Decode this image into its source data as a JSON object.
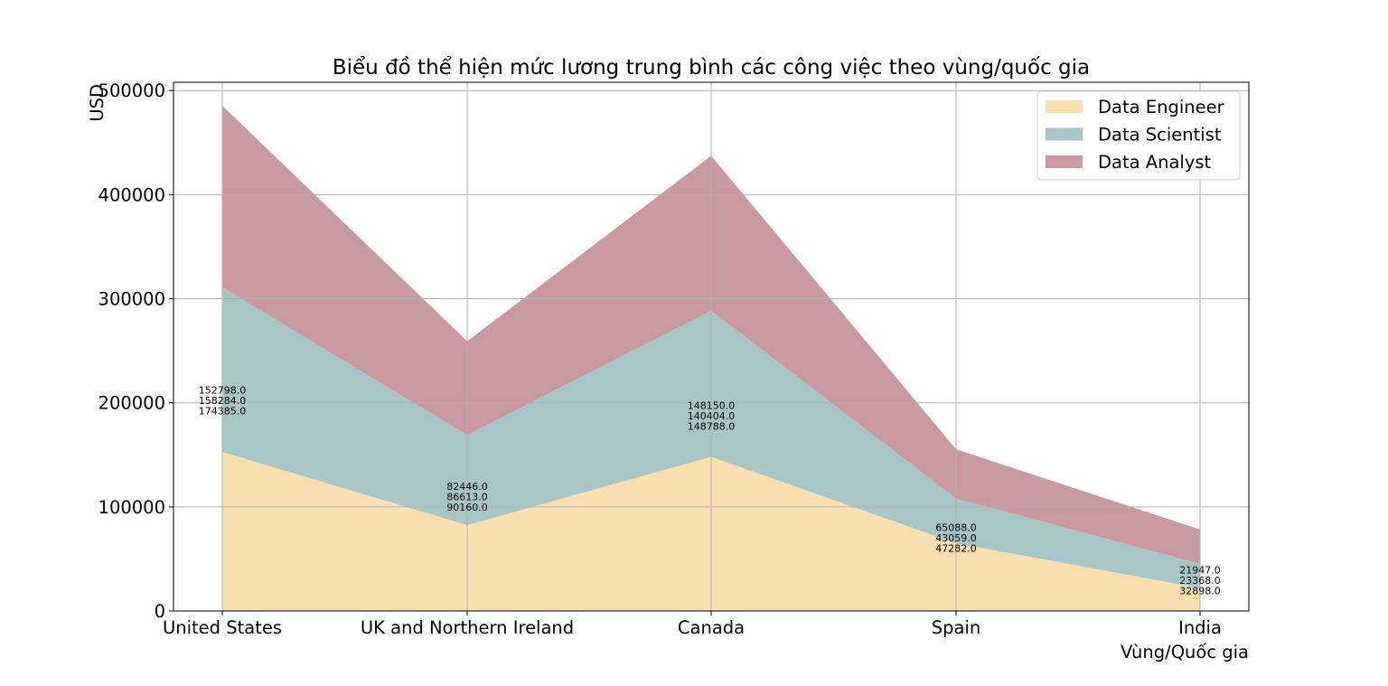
{
  "chart_data": {
    "type": "area",
    "stacked": true,
    "title": "Biểu đồ thể hiện mức lương trung bình các công việc theo vùng/quốc gia",
    "xlabel": "Vùng/Quốc gia",
    "ylabel": "USD",
    "categories": [
      "United States",
      "UK and Northern Ireland",
      "Canada",
      "Spain",
      "India"
    ],
    "series": [
      {
        "name": "Data Engineer",
        "values": [
          152798.0,
          82446.0,
          148150.0,
          65088.0,
          21947.0
        ],
        "color": "#f9dfaf"
      },
      {
        "name": "Data Scientist",
        "values": [
          158284.0,
          86613.0,
          140404.0,
          43059.0,
          23368.0
        ],
        "color": "#a9c6c6"
      },
      {
        "name": "Data Analyst",
        "values": [
          174385.0,
          90160.0,
          148788.0,
          47282.0,
          32898.0
        ],
        "color": "#c8999f"
      }
    ],
    "data_labels": [
      [
        "152798.0",
        "158284.0",
        "174385.0"
      ],
      [
        "82446.0",
        "86613.0",
        "90160.0"
      ],
      [
        "148150.0",
        "140404.0",
        "148788.0"
      ],
      [
        "65088.0",
        "43059.0",
        "47282.0"
      ],
      [
        "21947.0",
        "23368.0",
        "32898.0"
      ]
    ],
    "ylim": [
      0,
      508000
    ],
    "yticks": [
      0,
      100000,
      200000,
      300000,
      400000,
      500000
    ],
    "ytick_labels": [
      "0",
      "100000",
      "200000",
      "300000",
      "400000",
      "500000"
    ],
    "grid": true,
    "legend_position": "top-right"
  }
}
